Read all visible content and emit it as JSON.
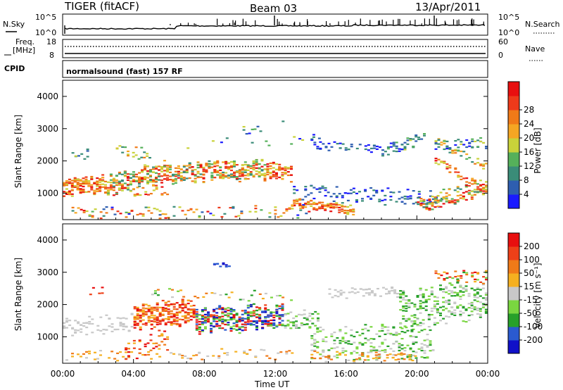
{
  "header": {
    "radar_title": "TIGER (fitACF)",
    "beam": "Beam 03",
    "date": "13/Apr/2011",
    "nsky_label": "N.Sky",
    "nsky_ticks": [
      "10^5",
      "10^0"
    ],
    "nsearch_label": "N.Search",
    "nsearch_ticks": [
      "10^5",
      "10^0"
    ],
    "freq_label_1": "Freq.",
    "freq_label_2": "[MHz]",
    "freq_ticks": [
      "18",
      "8"
    ],
    "nave_label": "Nave",
    "nave_ticks": [
      "60",
      "0"
    ],
    "cpid_label": "CPID",
    "cpid_value": "normalsound (fast) 157 RF"
  },
  "chart_data": [
    {
      "type": "heatmap",
      "title": "",
      "xlabel": "",
      "ylabel": "Slant Range [km]",
      "x_range": [
        "00:00",
        "00:00"
      ],
      "ylim": [
        180,
        4500
      ],
      "yticks": [
        "1000",
        "2000",
        "3000",
        "4000"
      ],
      "colorbar": {
        "label": "Power [dB]",
        "ticks": [
          "4",
          "8",
          "12",
          "16",
          "20",
          "24",
          "28"
        ],
        "colors": [
          "#1a1aff",
          "#2e5eb0",
          "#3a8c78",
          "#55b05a",
          "#c9d23a",
          "#f5a623",
          "#f07a18",
          "#ee3a1a",
          "#e80f0f"
        ]
      }
    },
    {
      "type": "heatmap",
      "title": "",
      "xlabel": "Time UT",
      "ylabel": "Slant Range [km]",
      "xticks": [
        "00:00",
        "04:00",
        "08:00",
        "12:00",
        "16:00",
        "20:00",
        "00:00"
      ],
      "ylim": [
        180,
        4500
      ],
      "yticks": [
        "1000",
        "2000",
        "3000",
        "4000"
      ],
      "colorbar": {
        "label": "Velocity [m s⁻¹]",
        "ticks": [
          "200",
          "100",
          "50",
          "15",
          "-15",
          "-50",
          "-100",
          "-200"
        ],
        "colors": [
          "#1010c8",
          "#2a5ad0",
          "#27a02a",
          "#7ad640",
          "#c8c8c8",
          "#f5b020",
          "#f07a18",
          "#ee4018",
          "#e80f0f"
        ]
      }
    }
  ]
}
